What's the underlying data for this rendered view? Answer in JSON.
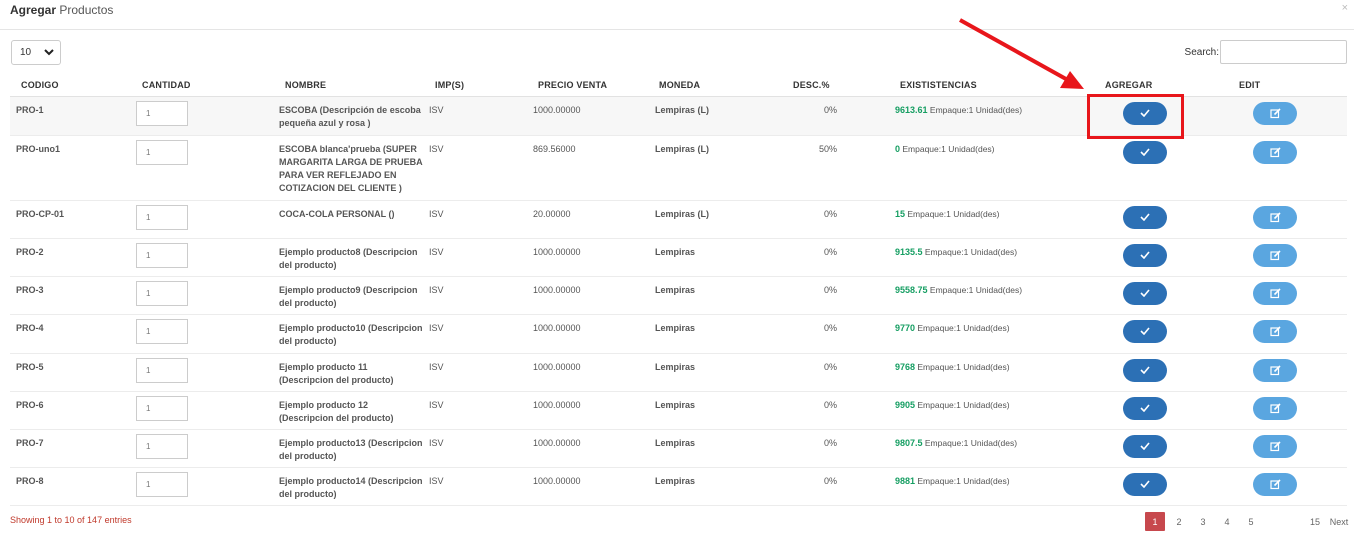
{
  "modal": {
    "title_bold": "Agregar",
    "title_rest": " Productos",
    "close": "×"
  },
  "length": {
    "value": "10"
  },
  "search": {
    "label": "Search:",
    "value": "",
    "placeholder": ""
  },
  "columns": [
    "CODIGO",
    "CANTIDAD",
    "NOMBRE",
    "IMP(S)",
    "PRECIO VENTA",
    "MONEDA",
    "DESC.%",
    "EXISTISTENCIAS",
    "AGREGAR",
    "EDIT"
  ],
  "rows": [
    {
      "code": "PRO-1",
      "qty": "1",
      "name": "ESCOBA (Descripción de escoba pequeña azul y rosa )",
      "imp": "ISV",
      "price": "1000.00000",
      "currency": "Lempiras (L)",
      "desc": "0%",
      "stock": "9613.61",
      "stock_note": " Empaque:1 Unidad(des)"
    },
    {
      "code": "PRO-uno1",
      "qty": "1",
      "name": "ESCOBA blanca'prueba (SUPER MARGARITA LARGA DE PRUEBA PARA VER REFLEJADO EN COTIZACION DEL CLIENTE )",
      "imp": "ISV",
      "price": "869.56000",
      "currency": "Lempiras (L)",
      "desc": "50%",
      "stock": "0",
      "stock_note": " Empaque:1 Unidad(des)"
    },
    {
      "code": "PRO-CP-01",
      "qty": "1",
      "name": "COCA-COLA PERSONAL ()",
      "imp": "ISV",
      "price": "20.00000",
      "currency": "Lempiras (L)",
      "desc": "0%",
      "stock": "15",
      "stock_note": " Empaque:1 Unidad(des)"
    },
    {
      "code": "PRO-2",
      "qty": "1",
      "name": "Ejemplo producto8 (Descripcion del producto)",
      "imp": "ISV",
      "price": "1000.00000",
      "currency": "Lempiras",
      "desc": "0%",
      "stock": "9135.5",
      "stock_note": " Empaque:1 Unidad(des)"
    },
    {
      "code": "PRO-3",
      "qty": "1",
      "name": "Ejemplo producto9 (Descripcion del producto)",
      "imp": "ISV",
      "price": "1000.00000",
      "currency": "Lempiras",
      "desc": "0%",
      "stock": "9558.75",
      "stock_note": " Empaque:1 Unidad(des)"
    },
    {
      "code": "PRO-4",
      "qty": "1",
      "name": "Ejemplo producto10 (Descripcion del producto)",
      "imp": "ISV",
      "price": "1000.00000",
      "currency": "Lempiras",
      "desc": "0%",
      "stock": "9770",
      "stock_note": " Empaque:1 Unidad(des)"
    },
    {
      "code": "PRO-5",
      "qty": "1",
      "name": "Ejemplo producto 11 (Descripcion del producto)",
      "imp": "ISV",
      "price": "1000.00000",
      "currency": "Lempiras",
      "desc": "0%",
      "stock": "9768",
      "stock_note": " Empaque:1 Unidad(des)"
    },
    {
      "code": "PRO-6",
      "qty": "1",
      "name": "Ejemplo producto 12 (Descripcion del producto)",
      "imp": "ISV",
      "price": "1000.00000",
      "currency": "Lempiras",
      "desc": "0%",
      "stock": "9905",
      "stock_note": " Empaque:1 Unidad(des)"
    },
    {
      "code": "PRO-7",
      "qty": "1",
      "name": "Ejemplo producto13 (Descripcion del producto)",
      "imp": "ISV",
      "price": "1000.00000",
      "currency": "Lempiras",
      "desc": "0%",
      "stock": "9807.5",
      "stock_note": " Empaque:1 Unidad(des)"
    },
    {
      "code": "PRO-8",
      "qty": "1",
      "name": "Ejemplo producto14 (Descripcion del producto)",
      "imp": "ISV",
      "price": "1000.00000",
      "currency": "Lempiras",
      "desc": "0%",
      "stock": "9881",
      "stock_note": " Empaque:1 Unidad(des)"
    }
  ],
  "icons": {
    "add": "check-icon",
    "edit": "edit-icon"
  },
  "colors": {
    "add_button": "#2c70b5",
    "edit_button": "#5aa6e0",
    "stock_number": "#159e62",
    "highlight": "#e8161b",
    "active_page": "#c7484d"
  },
  "footer": {
    "info": "Showing 1 to 10 of 147 entries",
    "pages": [
      "1",
      "2",
      "3",
      "4",
      "5"
    ],
    "last_page": "15",
    "next": "Next"
  }
}
